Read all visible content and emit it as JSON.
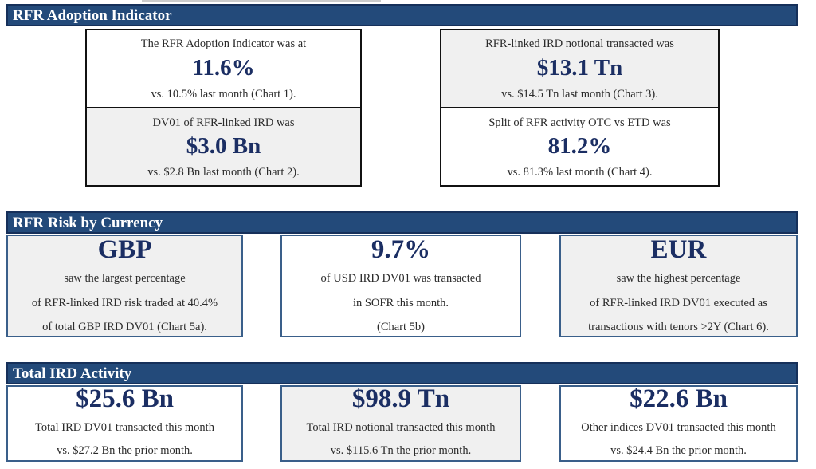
{
  "sections": {
    "adoption": {
      "title": "RFR Adoption Indicator"
    },
    "risk": {
      "title": "RFR Risk by Currency"
    },
    "activity": {
      "title": "Total IRD Activity"
    }
  },
  "adoption_cards": [
    {
      "intro": "The RFR Adoption Indicator was at",
      "value": "11.6%",
      "compare": "vs. 10.5% last month (Chart 1)."
    },
    {
      "intro": "RFR-linked IRD notional transacted was",
      "value": "$13.1 Tn",
      "compare": "vs. $14.5 Tn last month (Chart 3)."
    },
    {
      "intro": "DV01 of RFR-linked IRD was",
      "value": "$3.0 Bn",
      "compare": "vs. $2.8 Bn last month (Chart 2)."
    },
    {
      "intro": "Split of RFR activity OTC vs ETD was",
      "value": "81.2%",
      "compare": "vs. 81.3% last month (Chart 4)."
    }
  ],
  "risk_cards": [
    {
      "value": "GBP",
      "lines": [
        "saw the largest percentage",
        "of RFR-linked IRD risk traded at 40.4%",
        "of total GBP IRD DV01 (Chart 5a)."
      ]
    },
    {
      "value": "9.7%",
      "lines": [
        "of USD IRD DV01 was transacted",
        "in SOFR this month.",
        "(Chart 5b)"
      ]
    },
    {
      "value": "EUR",
      "lines": [
        "saw the highest percentage",
        "of RFR-linked IRD DV01 executed as",
        "transactions with tenors >2Y (Chart 6)."
      ]
    }
  ],
  "activity_cards": [
    {
      "value": "$25.6 Bn",
      "desc": "Total IRD DV01 transacted this month",
      "compare": "vs. $27.2 Bn the prior month."
    },
    {
      "value": "$98.9 Tn",
      "desc": "Total IRD notional transacted this month",
      "compare": "vs. $115.6 Tn the prior month."
    },
    {
      "value": "$22.6 Bn",
      "desc": "Other indices DV01 transacted this month",
      "compare": "vs. $24.4 Bn the prior month."
    }
  ]
}
